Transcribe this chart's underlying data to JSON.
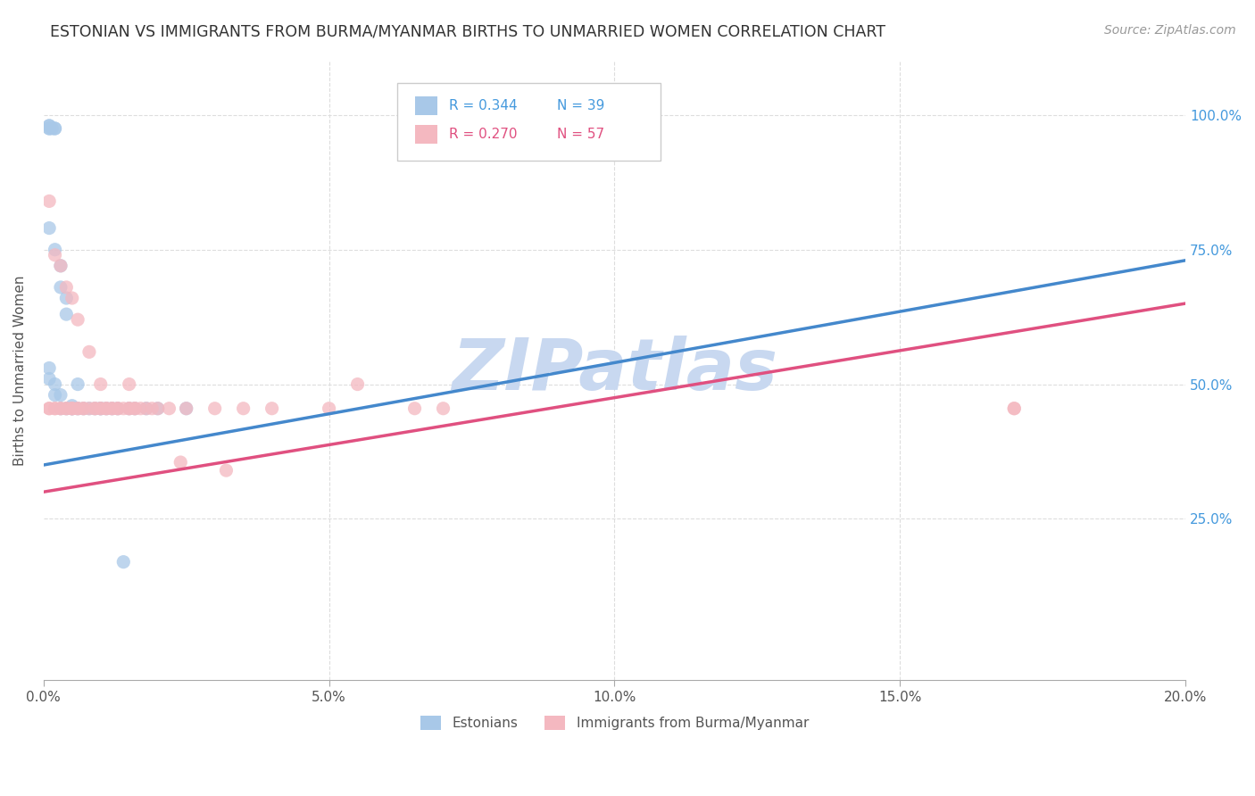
{
  "title": "ESTONIAN VS IMMIGRANTS FROM BURMA/MYANMAR BIRTHS TO UNMARRIED WOMEN CORRELATION CHART",
  "source": "Source: ZipAtlas.com",
  "ylabel": "Births to Unmarried Women",
  "xmin": 0.0,
  "xmax": 0.2,
  "ymin": -0.05,
  "ymax": 1.1,
  "xticks": [
    0.0,
    0.05,
    0.1,
    0.15,
    0.2
  ],
  "xticklabels": [
    "0.0%",
    "5.0%",
    "10.0%",
    "15.0%",
    "20.0%"
  ],
  "yticks": [
    0.0,
    0.25,
    0.5,
    0.75,
    1.0
  ],
  "yticklabels_right": [
    "",
    "25.0%",
    "50.0%",
    "75.0%",
    "100.0%"
  ],
  "r_estonian": 0.344,
  "n_estonian": 39,
  "r_burma": 0.27,
  "n_burma": 57,
  "color_estonian": "#a8c8e8",
  "color_burma": "#f4b8c0",
  "color_line_estonian": "#4488cc",
  "color_line_burma": "#e05080",
  "color_legend_text_blue": "#4499dd",
  "color_legend_text_pink": "#e05080",
  "watermark_color": "#c8d8f0",
  "estonian_trendline": [
    0.0,
    0.2,
    0.35,
    0.73
  ],
  "burma_trendline": [
    0.0,
    0.2,
    0.3,
    0.65
  ],
  "estonian_x": [
    0.0003,
    0.0005,
    0.0006,
    0.0008,
    0.001,
    0.001,
    0.0012,
    0.0014,
    0.0015,
    0.002,
    0.002,
    0.0025,
    0.003,
    0.003,
    0.004,
    0.004,
    0.005,
    0.005,
    0.005,
    0.006,
    0.006,
    0.007,
    0.007,
    0.008,
    0.009,
    0.01,
    0.01,
    0.011,
    0.012,
    0.013,
    0.014,
    0.015,
    0.016,
    0.017,
    0.018,
    0.019,
    0.02,
    0.025,
    0.03
  ],
  "estonian_y": [
    0.98,
    0.975,
    0.975,
    0.975,
    0.975,
    0.98,
    0.975,
    0.975,
    0.975,
    0.8,
    0.72,
    0.7,
    0.62,
    0.55,
    0.52,
    0.48,
    0.47,
    0.46,
    0.455,
    0.455,
    0.455,
    0.5,
    0.455,
    0.455,
    0.455,
    0.455,
    0.455,
    0.455,
    0.455,
    0.455,
    0.455,
    0.455,
    0.455,
    0.455,
    0.455,
    0.455,
    0.455,
    0.455,
    0.455
  ],
  "burma_x": [
    0.0003,
    0.0005,
    0.001,
    0.001,
    0.0015,
    0.002,
    0.002,
    0.003,
    0.003,
    0.004,
    0.004,
    0.005,
    0.005,
    0.006,
    0.006,
    0.007,
    0.007,
    0.008,
    0.008,
    0.009,
    0.009,
    0.01,
    0.01,
    0.011,
    0.012,
    0.012,
    0.013,
    0.013,
    0.014,
    0.015,
    0.015,
    0.016,
    0.016,
    0.017,
    0.018,
    0.018,
    0.019,
    0.02,
    0.022,
    0.025,
    0.027,
    0.03,
    0.032,
    0.035,
    0.04,
    0.05,
    0.055,
    0.065,
    0.07,
    0.08,
    0.003,
    0.005,
    0.007,
    0.009,
    0.012,
    0.015,
    0.17
  ],
  "burma_y": [
    0.455,
    0.455,
    0.455,
    0.455,
    0.455,
    0.455,
    0.455,
    0.4,
    0.455,
    0.36,
    0.455,
    0.455,
    0.455,
    0.455,
    0.455,
    0.455,
    0.455,
    0.455,
    0.455,
    0.455,
    0.455,
    0.455,
    0.455,
    0.455,
    0.455,
    0.455,
    0.455,
    0.455,
    0.455,
    0.455,
    0.455,
    0.455,
    0.455,
    0.455,
    0.455,
    0.455,
    0.455,
    0.455,
    0.455,
    0.355,
    0.455,
    0.455,
    0.34,
    0.455,
    0.455,
    0.455,
    0.5,
    0.455,
    0.455,
    0.455,
    0.8,
    0.72,
    0.68,
    0.62,
    0.5,
    0.5,
    0.455
  ]
}
